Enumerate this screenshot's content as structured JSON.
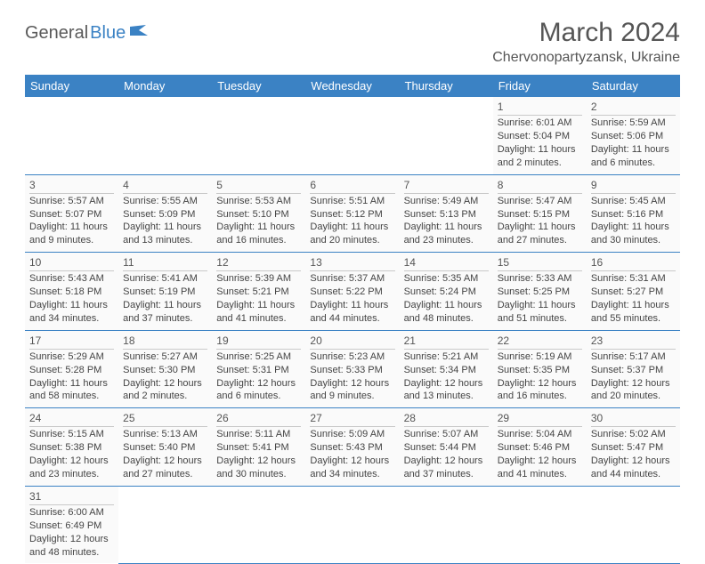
{
  "logo": {
    "part1": "General",
    "part2": "Blue"
  },
  "title": "March 2024",
  "location": "Chervonopartyzansk, Ukraine",
  "colors": {
    "header_bg": "#3b82c4",
    "header_text": "#ffffff",
    "logo_gray": "#5a5a5a",
    "logo_blue": "#3b82c4",
    "cell_bg": "#fafafa",
    "text": "#444444"
  },
  "weekdays": [
    "Sunday",
    "Monday",
    "Tuesday",
    "Wednesday",
    "Thursday",
    "Friday",
    "Saturday"
  ],
  "weeks": [
    [
      null,
      null,
      null,
      null,
      null,
      {
        "n": "1",
        "sr": "Sunrise: 6:01 AM",
        "ss": "Sunset: 5:04 PM",
        "dl": "Daylight: 11 hours and 2 minutes."
      },
      {
        "n": "2",
        "sr": "Sunrise: 5:59 AM",
        "ss": "Sunset: 5:06 PM",
        "dl": "Daylight: 11 hours and 6 minutes."
      }
    ],
    [
      {
        "n": "3",
        "sr": "Sunrise: 5:57 AM",
        "ss": "Sunset: 5:07 PM",
        "dl": "Daylight: 11 hours and 9 minutes."
      },
      {
        "n": "4",
        "sr": "Sunrise: 5:55 AM",
        "ss": "Sunset: 5:09 PM",
        "dl": "Daylight: 11 hours and 13 minutes."
      },
      {
        "n": "5",
        "sr": "Sunrise: 5:53 AM",
        "ss": "Sunset: 5:10 PM",
        "dl": "Daylight: 11 hours and 16 minutes."
      },
      {
        "n": "6",
        "sr": "Sunrise: 5:51 AM",
        "ss": "Sunset: 5:12 PM",
        "dl": "Daylight: 11 hours and 20 minutes."
      },
      {
        "n": "7",
        "sr": "Sunrise: 5:49 AM",
        "ss": "Sunset: 5:13 PM",
        "dl": "Daylight: 11 hours and 23 minutes."
      },
      {
        "n": "8",
        "sr": "Sunrise: 5:47 AM",
        "ss": "Sunset: 5:15 PM",
        "dl": "Daylight: 11 hours and 27 minutes."
      },
      {
        "n": "9",
        "sr": "Sunrise: 5:45 AM",
        "ss": "Sunset: 5:16 PM",
        "dl": "Daylight: 11 hours and 30 minutes."
      }
    ],
    [
      {
        "n": "10",
        "sr": "Sunrise: 5:43 AM",
        "ss": "Sunset: 5:18 PM",
        "dl": "Daylight: 11 hours and 34 minutes."
      },
      {
        "n": "11",
        "sr": "Sunrise: 5:41 AM",
        "ss": "Sunset: 5:19 PM",
        "dl": "Daylight: 11 hours and 37 minutes."
      },
      {
        "n": "12",
        "sr": "Sunrise: 5:39 AM",
        "ss": "Sunset: 5:21 PM",
        "dl": "Daylight: 11 hours and 41 minutes."
      },
      {
        "n": "13",
        "sr": "Sunrise: 5:37 AM",
        "ss": "Sunset: 5:22 PM",
        "dl": "Daylight: 11 hours and 44 minutes."
      },
      {
        "n": "14",
        "sr": "Sunrise: 5:35 AM",
        "ss": "Sunset: 5:24 PM",
        "dl": "Daylight: 11 hours and 48 minutes."
      },
      {
        "n": "15",
        "sr": "Sunrise: 5:33 AM",
        "ss": "Sunset: 5:25 PM",
        "dl": "Daylight: 11 hours and 51 minutes."
      },
      {
        "n": "16",
        "sr": "Sunrise: 5:31 AM",
        "ss": "Sunset: 5:27 PM",
        "dl": "Daylight: 11 hours and 55 minutes."
      }
    ],
    [
      {
        "n": "17",
        "sr": "Sunrise: 5:29 AM",
        "ss": "Sunset: 5:28 PM",
        "dl": "Daylight: 11 hours and 58 minutes."
      },
      {
        "n": "18",
        "sr": "Sunrise: 5:27 AM",
        "ss": "Sunset: 5:30 PM",
        "dl": "Daylight: 12 hours and 2 minutes."
      },
      {
        "n": "19",
        "sr": "Sunrise: 5:25 AM",
        "ss": "Sunset: 5:31 PM",
        "dl": "Daylight: 12 hours and 6 minutes."
      },
      {
        "n": "20",
        "sr": "Sunrise: 5:23 AM",
        "ss": "Sunset: 5:33 PM",
        "dl": "Daylight: 12 hours and 9 minutes."
      },
      {
        "n": "21",
        "sr": "Sunrise: 5:21 AM",
        "ss": "Sunset: 5:34 PM",
        "dl": "Daylight: 12 hours and 13 minutes."
      },
      {
        "n": "22",
        "sr": "Sunrise: 5:19 AM",
        "ss": "Sunset: 5:35 PM",
        "dl": "Daylight: 12 hours and 16 minutes."
      },
      {
        "n": "23",
        "sr": "Sunrise: 5:17 AM",
        "ss": "Sunset: 5:37 PM",
        "dl": "Daylight: 12 hours and 20 minutes."
      }
    ],
    [
      {
        "n": "24",
        "sr": "Sunrise: 5:15 AM",
        "ss": "Sunset: 5:38 PM",
        "dl": "Daylight: 12 hours and 23 minutes."
      },
      {
        "n": "25",
        "sr": "Sunrise: 5:13 AM",
        "ss": "Sunset: 5:40 PM",
        "dl": "Daylight: 12 hours and 27 minutes."
      },
      {
        "n": "26",
        "sr": "Sunrise: 5:11 AM",
        "ss": "Sunset: 5:41 PM",
        "dl": "Daylight: 12 hours and 30 minutes."
      },
      {
        "n": "27",
        "sr": "Sunrise: 5:09 AM",
        "ss": "Sunset: 5:43 PM",
        "dl": "Daylight: 12 hours and 34 minutes."
      },
      {
        "n": "28",
        "sr": "Sunrise: 5:07 AM",
        "ss": "Sunset: 5:44 PM",
        "dl": "Daylight: 12 hours and 37 minutes."
      },
      {
        "n": "29",
        "sr": "Sunrise: 5:04 AM",
        "ss": "Sunset: 5:46 PM",
        "dl": "Daylight: 12 hours and 41 minutes."
      },
      {
        "n": "30",
        "sr": "Sunrise: 5:02 AM",
        "ss": "Sunset: 5:47 PM",
        "dl": "Daylight: 12 hours and 44 minutes."
      }
    ],
    [
      {
        "n": "31",
        "sr": "Sunrise: 6:00 AM",
        "ss": "Sunset: 6:49 PM",
        "dl": "Daylight: 12 hours and 48 minutes."
      },
      null,
      null,
      null,
      null,
      null,
      null
    ]
  ]
}
